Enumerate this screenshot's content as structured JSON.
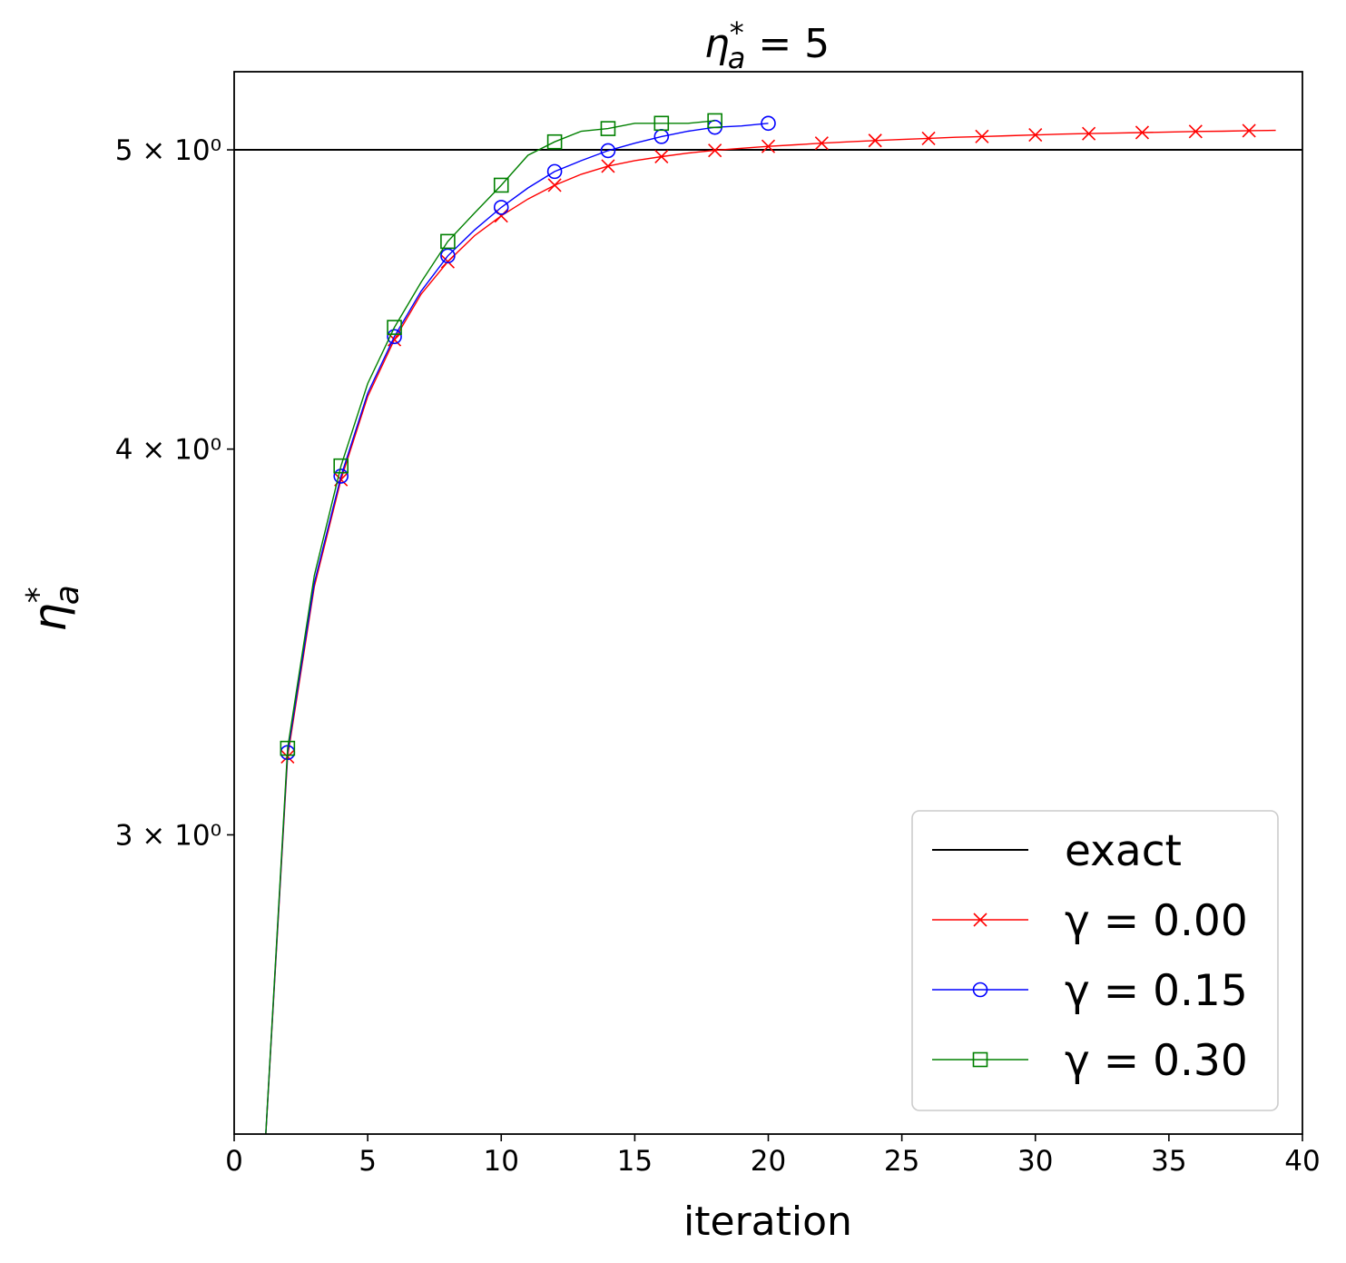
{
  "chart_data": {
    "type": "line",
    "title": "η*a = 5",
    "title_parts": {
      "main": "η",
      "sup": "*",
      "sub": "a",
      "rest": " = 5"
    },
    "xlabel": "iteration",
    "ylabel": "η*a",
    "ylabel_parts": {
      "main": "η",
      "sup": "*",
      "sub": "a"
    },
    "xlim": [
      0,
      40
    ],
    "ylim": [
      2.4,
      5.3
    ],
    "yscale": "log",
    "grid": false,
    "legend_position": "lower right",
    "x_ticks": [
      0,
      5,
      10,
      15,
      20,
      25,
      30,
      35,
      40
    ],
    "y_ticks": [
      {
        "value": 3,
        "label": "3 × 10⁰"
      },
      {
        "value": 4,
        "label": "4 × 10⁰"
      },
      {
        "value": 5,
        "label": "5 × 10⁰"
      }
    ],
    "series": [
      {
        "name": "exact",
        "color": "#000000",
        "marker": "none",
        "hline": 5.0
      },
      {
        "name": "γ = 0.00",
        "color": "#ff0000",
        "marker": "x",
        "x": [
          1,
          2,
          3,
          4,
          5,
          6,
          7,
          8,
          9,
          10,
          11,
          12,
          13,
          14,
          15,
          16,
          17,
          18,
          19,
          20,
          21,
          22,
          23,
          24,
          25,
          26,
          27,
          28,
          29,
          30,
          31,
          32,
          33,
          34,
          35,
          36,
          37,
          38,
          39
        ],
        "y": [
          2.25,
          3.18,
          3.61,
          3.91,
          4.16,
          4.34,
          4.49,
          4.6,
          4.69,
          4.76,
          4.82,
          4.87,
          4.91,
          4.94,
          4.96,
          4.975,
          4.988,
          4.998,
          5.006,
          5.013,
          5.019,
          5.025,
          5.03,
          5.035,
          5.039,
          5.043,
          5.047,
          5.05,
          5.053,
          5.056,
          5.059,
          5.061,
          5.063,
          5.065,
          5.067,
          5.069,
          5.07,
          5.072,
          5.073
        ]
      },
      {
        "name": "γ = 0.15",
        "color": "#0000ff",
        "marker": "o",
        "x": [
          1,
          2,
          3,
          4,
          5,
          6,
          7,
          8,
          9,
          10,
          11,
          12,
          13,
          14,
          15,
          16,
          17,
          18,
          19,
          20
        ],
        "y": [
          2.25,
          3.19,
          3.62,
          3.92,
          4.17,
          4.35,
          4.5,
          4.62,
          4.71,
          4.79,
          4.86,
          4.92,
          4.96,
          4.997,
          5.025,
          5.05,
          5.07,
          5.085,
          5.09,
          5.1
        ]
      },
      {
        "name": "γ = 0.30",
        "color": "#008000",
        "marker": "s",
        "x": [
          1,
          2,
          3,
          4,
          5,
          6,
          7,
          8,
          9,
          10,
          11,
          12,
          13,
          14,
          15,
          16,
          17,
          18
        ],
        "y": [
          2.25,
          3.2,
          3.64,
          3.95,
          4.2,
          4.38,
          4.53,
          4.67,
          4.77,
          4.87,
          4.98,
          5.03,
          5.07,
          5.08,
          5.1,
          5.1,
          5.1,
          5.11
        ]
      }
    ]
  }
}
